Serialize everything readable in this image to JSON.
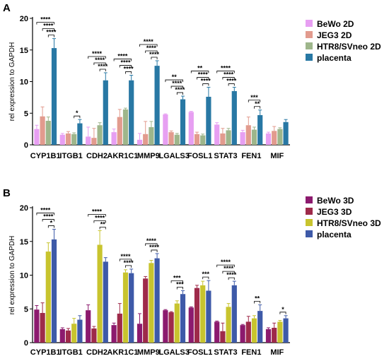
{
  "chart_data": [
    {
      "panel_label": "A",
      "type": "bar",
      "ylabel": "rel expression to GAPDH",
      "ylim": [
        0,
        20
      ],
      "yticks": [
        0,
        5,
        10,
        15,
        20
      ],
      "error_bars": true,
      "legend_position": "top-right",
      "categories": [
        "CYP1B1",
        "ITGB1",
        "CDH2",
        "AKR1C1",
        "MMP9",
        "LGALS3",
        "FOSL1",
        "STAT3",
        "FEN1",
        "MIF"
      ],
      "series": [
        {
          "name": "BeWo 2D",
          "color": "#e79ff2",
          "values": [
            2.5,
            1.6,
            1.3,
            2.0,
            0.8,
            4.8,
            5.2,
            3.2,
            2.0,
            1.8
          ],
          "errors": [
            0.6,
            0.2,
            1.5,
            0.5,
            1.0,
            0.1,
            0.1,
            0.3,
            0.3,
            0.2
          ]
        },
        {
          "name": "JEG3 2D",
          "color": "#e29b8e",
          "values": [
            4.5,
            1.8,
            1.1,
            4.4,
            1.7,
            2.0,
            1.7,
            1.8,
            3.1,
            2.2
          ],
          "errors": [
            1.5,
            0.3,
            1.5,
            1.2,
            2.0,
            0.2,
            0.3,
            0.8,
            1.3,
            0.7
          ]
        },
        {
          "name": "HTR8/SVneo 2D",
          "color": "#9eb68b",
          "values": [
            3.8,
            1.7,
            3.1,
            5.6,
            2.8,
            1.6,
            1.5,
            2.3,
            2.4,
            2.5
          ],
          "errors": [
            0.6,
            0.2,
            0.4,
            0.2,
            0.9,
            0.2,
            0.2,
            0.3,
            0.4,
            0.2
          ]
        },
        {
          "name": "placenta",
          "color": "#2878a4",
          "values": [
            15.3,
            3.4,
            10.2,
            10.2,
            12.5,
            7.2,
            7.6,
            8.5,
            4.7,
            3.6
          ],
          "errors": [
            1.5,
            0.6,
            1.2,
            0.8,
            0.8,
            0.5,
            1.5,
            0.6,
            0.8,
            0.4
          ]
        }
      ],
      "significance": [
        {
          "category": "CYP1B1",
          "stars": [
            "****",
            "****",
            "****"
          ]
        },
        {
          "category": "ITGB1",
          "stars": [
            "*"
          ]
        },
        {
          "category": "CDH2",
          "stars": [
            "****",
            "****",
            "****"
          ]
        },
        {
          "category": "AKR1C1",
          "stars": [
            "****",
            "****",
            "****"
          ]
        },
        {
          "category": "MMP9",
          "stars": [
            "****",
            "****",
            "****"
          ]
        },
        {
          "category": "LGALS3",
          "stars": [
            "**",
            "****",
            "****"
          ]
        },
        {
          "category": "FOSL1",
          "stars": [
            "**",
            "****",
            "****"
          ]
        },
        {
          "category": "STAT3",
          "stars": [
            "****",
            "****",
            "****"
          ]
        },
        {
          "category": "FEN1",
          "stars": [
            "***",
            "**"
          ]
        },
        {
          "category": "MIF",
          "stars": []
        }
      ]
    },
    {
      "panel_label": "B",
      "type": "bar",
      "ylabel": "rel expression to GAPDH",
      "ylim": [
        0,
        20
      ],
      "yticks": [
        0,
        5,
        10,
        15,
        20
      ],
      "error_bars": true,
      "legend_position": "top-right",
      "categories": [
        "CYP1B1",
        "ITGB1",
        "CDH2",
        "AKR1C1",
        "MMP9",
        "LGALS3",
        "FOSL1",
        "STAT3",
        "FEN1",
        "MIF"
      ],
      "series": [
        {
          "name": "BeWo 3D",
          "color": "#8c1a6e",
          "values": [
            4.9,
            2.0,
            4.8,
            2.6,
            2.8,
            4.8,
            5.2,
            3.1,
            2.6,
            2.0
          ],
          "errors": [
            0.6,
            0.2,
            0.8,
            0.3,
            1.5,
            0.1,
            0.1,
            0.1,
            0.1,
            0.2
          ]
        },
        {
          "name": "JEG3 3D",
          "color": "#9e2a4a",
          "values": [
            4.4,
            1.8,
            2.1,
            4.3,
            9.5,
            4.5,
            8.1,
            1.7,
            3.1,
            2.2
          ],
          "errors": [
            1.5,
            0.3,
            0.3,
            1.5,
            0.3,
            0.1,
            0.4,
            1.2,
            0.8,
            0.7
          ]
        },
        {
          "name": "HTR8/SVneo 3D",
          "color": "#c8c42e",
          "values": [
            13.5,
            2.8,
            14.5,
            10.4,
            11.8,
            5.8,
            8.5,
            5.3,
            3.6,
            3.1
          ],
          "errors": [
            1.3,
            0.8,
            2.1,
            0.4,
            0.4,
            0.4,
            0.6,
            0.5,
            0.4,
            0.2
          ]
        },
        {
          "name": "placenta",
          "color": "#3e5aa8",
          "values": [
            15.3,
            3.4,
            12.0,
            10.3,
            12.5,
            7.2,
            7.7,
            8.5,
            4.7,
            3.6
          ],
          "errors": [
            1.5,
            0.6,
            0.6,
            0.6,
            0.7,
            0.5,
            1.5,
            0.6,
            0.9,
            0.4
          ]
        }
      ],
      "significance": [
        {
          "category": "CYP1B1",
          "stars": [
            "****",
            "****",
            "*"
          ]
        },
        {
          "category": "ITGB1",
          "stars": []
        },
        {
          "category": "CDH2",
          "stars": [
            "****",
            "****",
            "**"
          ]
        },
        {
          "category": "AKR1C1",
          "stars": [
            "****",
            "****"
          ]
        },
        {
          "category": "MMP9",
          "stars": [
            "****",
            "****"
          ]
        },
        {
          "category": "LGALS3",
          "stars": [
            "***",
            "***"
          ]
        },
        {
          "category": "FOSL1",
          "stars": [
            "***"
          ]
        },
        {
          "category": "STAT3",
          "stars": [
            "****",
            "****",
            "****"
          ]
        },
        {
          "category": "FEN1",
          "stars": [
            "**"
          ]
        },
        {
          "category": "MIF",
          "stars": [
            "*"
          ]
        }
      ]
    }
  ]
}
